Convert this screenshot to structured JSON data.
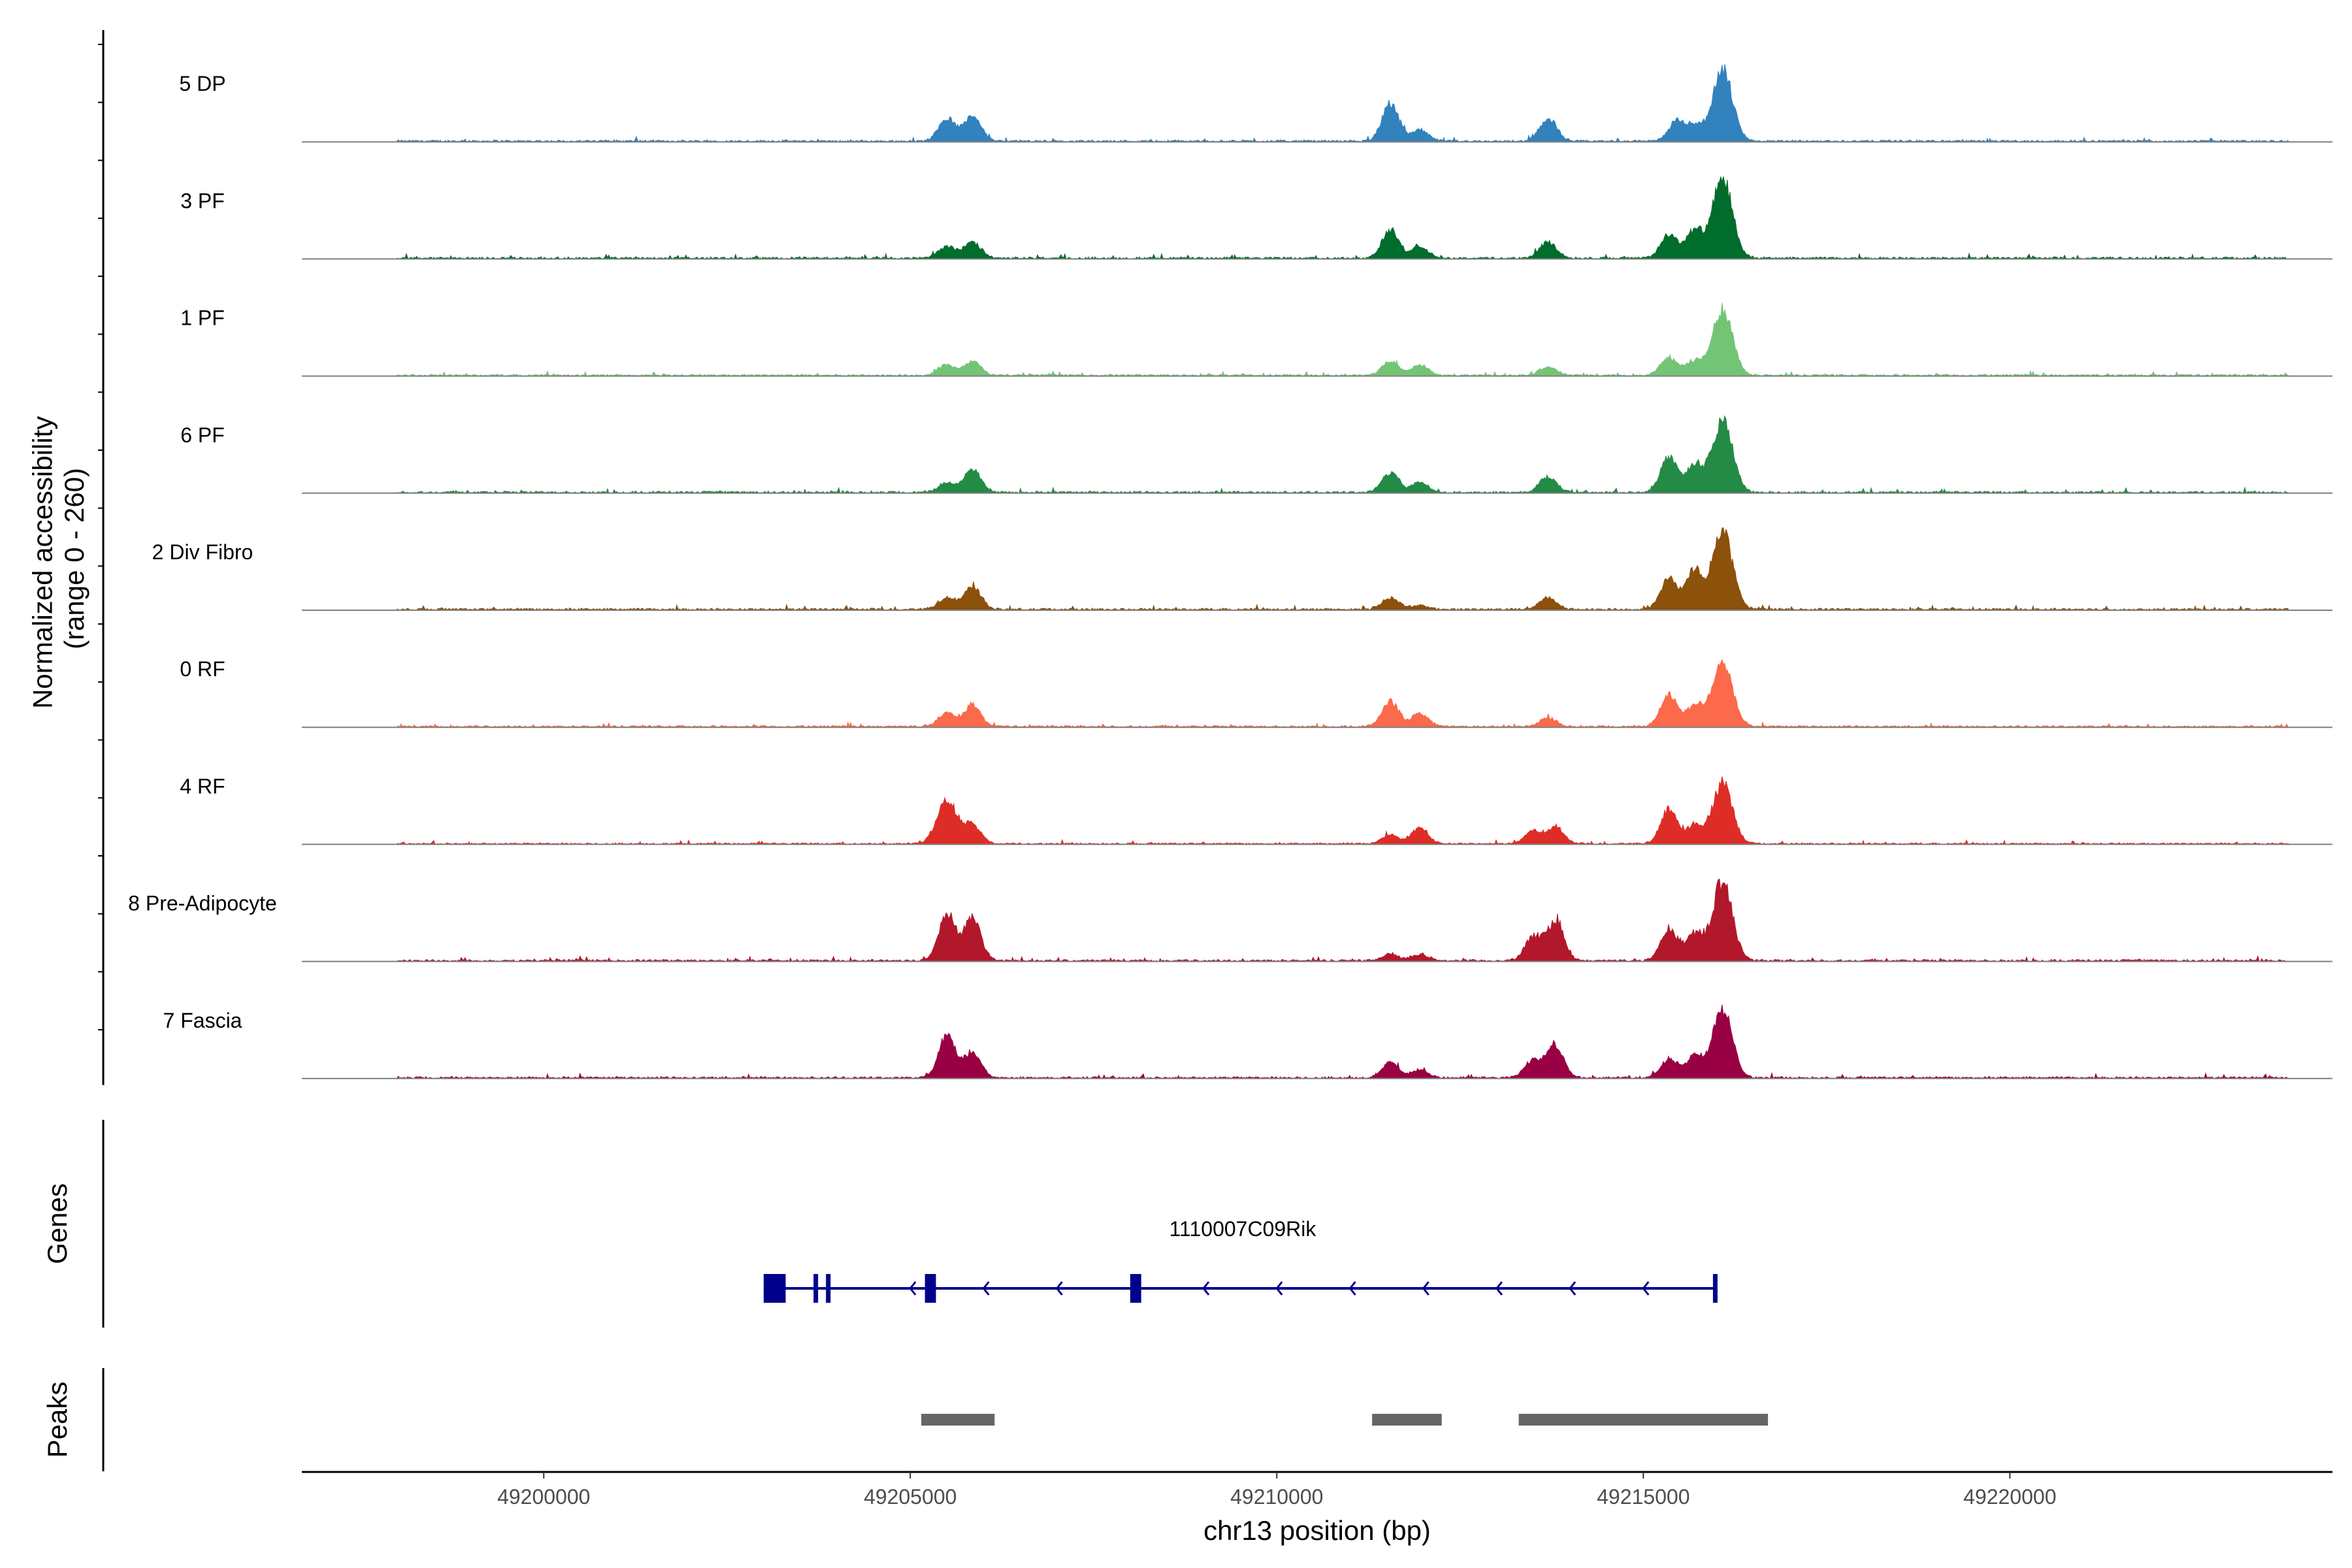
{
  "chart_data": {
    "type": "area",
    "title": "",
    "coverage_ylabel": "Normalized accessibility\n(range 0 - 260)",
    "coverage_range": [
      0,
      260
    ],
    "xlabel": "chr13 position (bp)",
    "xlim": [
      49196700,
      49224400
    ],
    "x_ticks": [
      49200000,
      49205000,
      49210000,
      49215000,
      49220000
    ],
    "x_tick_labels": [
      "49200000",
      "49205000",
      "49210000",
      "49215000",
      "49220000"
    ],
    "signal_extent": [
      49198000,
      49223800
    ],
    "tracks": [
      {
        "name": "5 DP",
        "color": "#3182bd",
        "scale": 0.95,
        "peaks": [
          [
            49205500,
            0.3
          ],
          [
            49205850,
            0.35
          ],
          [
            49211550,
            0.5
          ],
          [
            49211950,
            0.15
          ],
          [
            49213700,
            0.3
          ],
          [
            49215450,
            0.25
          ],
          [
            49215700,
            0.2
          ],
          [
            49216080,
            0.95
          ]
        ]
      },
      {
        "name": "3 PF",
        "color": "#006d2c",
        "scale": 1.0,
        "peaks": [
          [
            49205500,
            0.15
          ],
          [
            49205850,
            0.2
          ],
          [
            49211550,
            0.35
          ],
          [
            49211950,
            0.15
          ],
          [
            49213700,
            0.2
          ],
          [
            49215350,
            0.3
          ],
          [
            49215700,
            0.35
          ],
          [
            49216080,
            1.0
          ]
        ]
      },
      {
        "name": "1 PF",
        "color": "#74c476",
        "scale": 0.9,
        "peaks": [
          [
            49205500,
            0.15
          ],
          [
            49205850,
            0.2
          ],
          [
            49211550,
            0.2
          ],
          [
            49211950,
            0.15
          ],
          [
            49213700,
            0.12
          ],
          [
            49215350,
            0.25
          ],
          [
            49215700,
            0.2
          ],
          [
            49216080,
            0.95
          ]
        ]
      },
      {
        "name": "6 PF",
        "color": "#238b45",
        "scale": 1.0,
        "peaks": [
          [
            49205500,
            0.12
          ],
          [
            49205850,
            0.3
          ],
          [
            49211550,
            0.25
          ],
          [
            49211950,
            0.12
          ],
          [
            49213700,
            0.2
          ],
          [
            49215350,
            0.45
          ],
          [
            49215700,
            0.35
          ],
          [
            49216080,
            0.95
          ]
        ]
      },
      {
        "name": "2 Div Fibro",
        "color": "#8c510a",
        "scale": 1.0,
        "peaks": [
          [
            49205500,
            0.15
          ],
          [
            49205850,
            0.3
          ],
          [
            49211550,
            0.15
          ],
          [
            49211950,
            0.05
          ],
          [
            49213700,
            0.15
          ],
          [
            49215350,
            0.4
          ],
          [
            49215700,
            0.5
          ],
          [
            49216080,
            1.0
          ]
        ]
      },
      {
        "name": "0 RF",
        "color": "#fb6a4a",
        "scale": 0.9,
        "peaks": [
          [
            49205500,
            0.2
          ],
          [
            49205850,
            0.3
          ],
          [
            49211550,
            0.35
          ],
          [
            49211950,
            0.18
          ],
          [
            49213700,
            0.12
          ],
          [
            49215350,
            0.45
          ],
          [
            49215700,
            0.3
          ],
          [
            49216080,
            0.95
          ]
        ]
      },
      {
        "name": "4 RF",
        "color": "#de2d26",
        "scale": 0.8,
        "peaks": [
          [
            49205500,
            0.7
          ],
          [
            49205850,
            0.3
          ],
          [
            49211550,
            0.15
          ],
          [
            49211950,
            0.25
          ],
          [
            49213500,
            0.2
          ],
          [
            49213800,
            0.25
          ],
          [
            49215350,
            0.55
          ],
          [
            49215700,
            0.3
          ],
          [
            49216080,
            0.95
          ]
        ]
      },
      {
        "name": "8 Pre-Adipocyte",
        "color": "#b2182b",
        "scale": 1.0,
        "peaks": [
          [
            49205500,
            0.6
          ],
          [
            49205850,
            0.55
          ],
          [
            49211550,
            0.08
          ],
          [
            49211950,
            0.08
          ],
          [
            49213500,
            0.3
          ],
          [
            49213800,
            0.5
          ],
          [
            49215350,
            0.4
          ],
          [
            49215700,
            0.35
          ],
          [
            49216080,
            1.0
          ]
        ]
      },
      {
        "name": "7 Fascia",
        "color": "#980043",
        "scale": 0.95,
        "peaks": [
          [
            49205500,
            0.55
          ],
          [
            49205850,
            0.35
          ],
          [
            49211550,
            0.2
          ],
          [
            49211950,
            0.1
          ],
          [
            49213500,
            0.25
          ],
          [
            49213800,
            0.45
          ],
          [
            49215350,
            0.25
          ],
          [
            49215700,
            0.3
          ],
          [
            49216080,
            0.9
          ]
        ]
      }
    ],
    "genes_label": "Genes",
    "gene": {
      "name": "1110007C09Rik",
      "strand": "-",
      "start": 49203000,
      "end": 49216000,
      "color": "#00008b",
      "exons": [
        [
          49203000,
          49203300
        ],
        [
          49203680,
          49203720
        ],
        [
          49203850,
          49203890
        ],
        [
          49205200,
          49205350
        ],
        [
          49208000,
          49208150
        ],
        [
          49215950,
          49216000
        ]
      ],
      "arrows": [
        49205000,
        49206000,
        49207000,
        49209000,
        49210000,
        49211000,
        49212000,
        49213000,
        49214000,
        49215000
      ]
    },
    "peaks_label": "Peaks",
    "peak_color": "#666666",
    "peak_regions": [
      [
        49205150,
        49206150
      ],
      [
        49211300,
        49212250
      ],
      [
        49213300,
        49216700
      ]
    ]
  }
}
